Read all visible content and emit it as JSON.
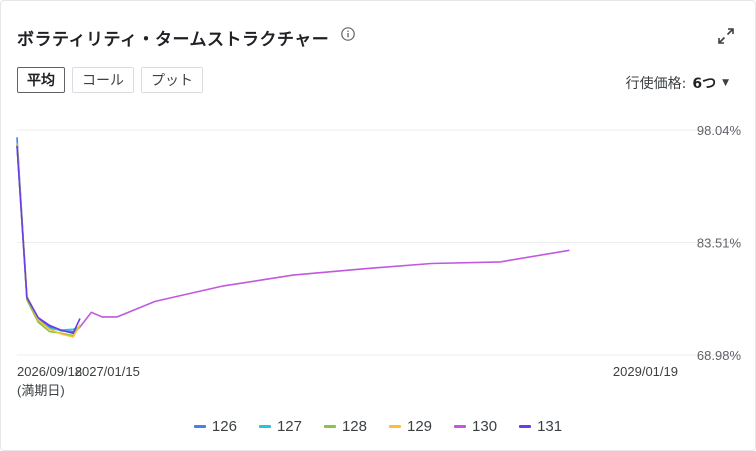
{
  "header": {
    "title": "ボラティリティ・タームストラクチャー",
    "info_icon": "info-icon",
    "expand_icon": "expand-icon"
  },
  "tabs": [
    {
      "label": "平均",
      "active": true
    },
    {
      "label": "コール",
      "active": false
    },
    {
      "label": "プット",
      "active": false
    }
  ],
  "strike_selector": {
    "label": "行使価格:",
    "value": "6つ"
  },
  "colors": {
    "126": "#4a7ee6",
    "127": "#26c6da",
    "128": "#8bc34a",
    "129": "#fbc02d",
    "130": "#c158e0",
    "131": "#6a3de8"
  },
  "chart_data": {
    "type": "line",
    "title": "",
    "x_type": "date",
    "x_range": [
      "2026-09-18",
      "2029-01-19"
    ],
    "ylim": [
      68.98,
      98.04
    ],
    "y_ticks": [
      "98.04%",
      "83.51%",
      "68.98%"
    ],
    "x_ticks": [
      "2026/09/18",
      "2027/01/15",
      "2029/01/19"
    ],
    "x_tick_sublabel": "(満期日)",
    "grid": true,
    "legend_position": "bottom",
    "series": [
      {
        "name": "126",
        "points": [
          [
            "2026-09-18",
            97.1
          ],
          [
            "2026-10-01",
            76.3
          ],
          [
            "2026-10-16",
            73.6
          ],
          [
            "2026-10-31",
            72.6
          ],
          [
            "2026-11-15",
            72.1
          ],
          [
            "2026-12-01",
            72.0
          ],
          [
            "2026-12-10",
            72.6
          ]
        ]
      },
      {
        "name": "127",
        "points": [
          [
            "2026-09-18",
            96.4
          ],
          [
            "2026-10-01",
            76.2
          ],
          [
            "2026-10-16",
            73.4
          ],
          [
            "2026-10-31",
            72.4
          ],
          [
            "2026-11-15",
            72.2
          ],
          [
            "2026-12-01",
            72.3
          ],
          [
            "2026-12-10",
            72.6
          ]
        ]
      },
      {
        "name": "128",
        "points": [
          [
            "2026-09-18",
            96.1
          ],
          [
            "2026-10-01",
            76.1
          ],
          [
            "2026-10-16",
            73.2
          ],
          [
            "2026-10-31",
            72.0
          ],
          [
            "2026-11-15",
            71.8
          ],
          [
            "2026-12-01",
            71.5
          ],
          [
            "2026-12-10",
            72.7
          ]
        ]
      },
      {
        "name": "129",
        "points": [
          [
            "2026-09-18",
            96.3
          ],
          [
            "2026-10-01",
            76.6
          ],
          [
            "2026-10-16",
            73.5
          ],
          [
            "2026-10-31",
            72.3
          ],
          [
            "2026-11-15",
            71.7
          ],
          [
            "2026-12-01",
            71.3
          ],
          [
            "2026-12-10",
            72.9
          ]
        ]
      },
      {
        "name": "130",
        "points": [
          [
            "2026-09-18",
            96.2
          ],
          [
            "2026-10-01",
            76.5
          ],
          [
            "2026-10-16",
            73.7
          ],
          [
            "2026-10-31",
            72.7
          ],
          [
            "2026-11-15",
            72.2
          ],
          [
            "2026-12-01",
            71.8
          ],
          [
            "2026-12-10",
            72.6
          ],
          [
            "2026-12-25",
            74.5
          ],
          [
            "2027-01-08",
            73.9
          ],
          [
            "2027-01-28",
            73.9
          ],
          [
            "2027-03-19",
            75.9
          ],
          [
            "2027-06-17",
            77.9
          ],
          [
            "2027-09-17",
            79.3
          ],
          [
            "2027-12-17",
            80.1
          ],
          [
            "2028-03-17",
            80.8
          ],
          [
            "2028-06-16",
            81.0
          ],
          [
            "2028-09-15",
            82.5
          ]
        ]
      },
      {
        "name": "131",
        "points": [
          [
            "2026-09-18",
            96.0
          ],
          [
            "2026-10-01",
            76.4
          ],
          [
            "2026-10-16",
            73.8
          ],
          [
            "2026-10-31",
            72.8
          ],
          [
            "2026-11-15",
            72.2
          ],
          [
            "2026-12-01",
            71.8
          ],
          [
            "2026-12-10",
            73.7
          ]
        ]
      }
    ]
  }
}
